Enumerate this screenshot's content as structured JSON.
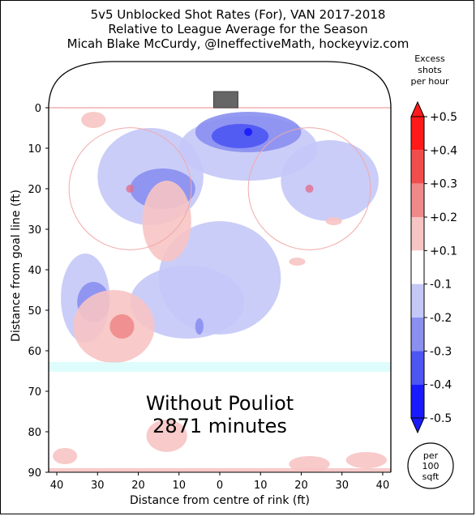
{
  "title_lines": [
    "5v5 Unblocked Shot Rates (For), VAN 2017-2018",
    "Relative to League Average for the Season",
    "Micah Blake McCurdy, @IneffectiveMath, hockeyviz.com"
  ],
  "chart_data": {
    "type": "heatmap",
    "title": "5v5 Unblocked Shot Rates (For), VAN 2017-2018",
    "subtitle": "Relative to League Average for the Season",
    "xlabel": "Distance from centre of rink (ft)",
    "ylabel": "Distance from goal line (ft)",
    "xlim": [
      42,
      -42
    ],
    "ylim": [
      0,
      90
    ],
    "x_ticks": [
      40,
      30,
      20,
      10,
      0,
      10,
      20,
      30,
      40
    ],
    "y_ticks": [
      0,
      10,
      20,
      30,
      40,
      50,
      60,
      70,
      80,
      90
    ],
    "annotation": [
      "Without Pouliot",
      "2871 minutes"
    ],
    "colorbar": {
      "label": [
        "Excess",
        "shots",
        "per hour"
      ],
      "unit_label": [
        "per",
        "100",
        "sqft"
      ],
      "tick_labels": [
        "+0.5",
        "+0.4",
        "+0.3",
        "+0.2",
        "+0.1",
        "-0.1",
        "-0.2",
        "-0.3",
        "-0.4",
        "-0.5"
      ],
      "colors": [
        "#ff1a1a",
        "#f24d4d",
        "#f08a8a",
        "#f7c4c4",
        "#ffffff",
        "#c4c8f7",
        "#8a8ff0",
        "#4d55f2",
        "#1a1aff"
      ]
    },
    "regions": [
      {
        "level": -0.1,
        "x": -7,
        "y": 10,
        "rx": 17,
        "ry": 8
      },
      {
        "level": -0.1,
        "x": -27,
        "y": 18,
        "rx": 12,
        "ry": 10
      },
      {
        "level": -0.1,
        "x": 17,
        "y": 17,
        "rx": 13,
        "ry": 12
      },
      {
        "level": -0.1,
        "x": 0,
        "y": 42,
        "rx": 15,
        "ry": 14
      },
      {
        "level": -0.1,
        "x": 8,
        "y": 48,
        "rx": 14,
        "ry": 9
      },
      {
        "level": -0.1,
        "x": 33,
        "y": 47,
        "rx": 6,
        "ry": 11
      },
      {
        "level": -0.2,
        "x": -7,
        "y": 6,
        "rx": 13,
        "ry": 5
      },
      {
        "level": -0.2,
        "x": 14,
        "y": 20,
        "rx": 8,
        "ry": 5
      },
      {
        "level": -0.2,
        "x": 31,
        "y": 48,
        "rx": 4,
        "ry": 5
      },
      {
        "level": -0.2,
        "x": 5,
        "y": 54,
        "rx": 1,
        "ry": 2
      },
      {
        "level": -0.3,
        "x": -5,
        "y": 7,
        "rx": 7,
        "ry": 3
      },
      {
        "level": -0.4,
        "x": -7,
        "y": 6,
        "rx": 1,
        "ry": 1
      },
      {
        "level": 0.1,
        "x": 13,
        "y": 28,
        "rx": 6,
        "ry": 10
      },
      {
        "level": 0.1,
        "x": 26,
        "y": 54,
        "rx": 10,
        "ry": 9
      },
      {
        "level": 0.1,
        "x": 31,
        "y": 3,
        "rx": 3,
        "ry": 2
      },
      {
        "level": 0.1,
        "x": -28,
        "y": 28,
        "rx": 2,
        "ry": 1
      },
      {
        "level": 0.1,
        "x": -19,
        "y": 38,
        "rx": 2,
        "ry": 1
      },
      {
        "level": 0.1,
        "x": 13,
        "y": 81,
        "rx": 5,
        "ry": 4
      },
      {
        "level": 0.1,
        "x": -22,
        "y": 88,
        "rx": 5,
        "ry": 2
      },
      {
        "level": 0.1,
        "x": 38,
        "y": 86,
        "rx": 3,
        "ry": 2
      },
      {
        "level": 0.1,
        "x": -36,
        "y": 87,
        "rx": 5,
        "ry": 2
      },
      {
        "level": 0.2,
        "x": 24,
        "y": 54,
        "rx": 3,
        "ry": 3
      }
    ]
  }
}
